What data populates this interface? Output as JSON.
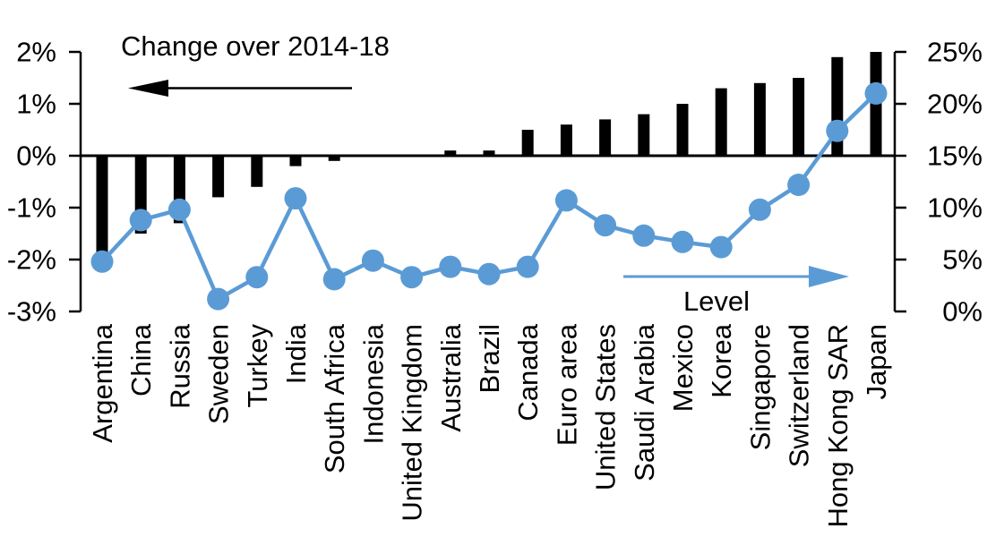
{
  "chart_data": {
    "type": "combo-bar-line",
    "title": "",
    "categories": [
      "Argentina",
      "China",
      "Russia",
      "Sweden",
      "Turkey",
      "India",
      "South Africa",
      "Indonesia",
      "United Kingdom",
      "Australia",
      "Brazil",
      "Canada",
      "Euro area",
      "United States",
      "Saudi Arabia",
      "Mexico",
      "Korea",
      "Singapore",
      "Switzerland",
      "Hong Kong SAR",
      "Japan"
    ],
    "series": [
      {
        "name": "Change over 2014-18",
        "type": "bar",
        "axis": "left",
        "color": "#000000",
        "values": [
          -1.9,
          -1.5,
          -1.3,
          -0.8,
          -0.6,
          -0.2,
          -0.1,
          0.0,
          0.0,
          0.1,
          0.1,
          0.5,
          0.6,
          0.7,
          0.8,
          1.0,
          1.3,
          1.4,
          1.5,
          1.9,
          2.0
        ]
      },
      {
        "name": "Level",
        "type": "line",
        "axis": "right",
        "color": "#5B9BD5",
        "values": [
          4.8,
          8.8,
          9.8,
          1.2,
          3.3,
          10.9,
          3.1,
          4.9,
          3.3,
          4.3,
          3.6,
          4.3,
          10.7,
          8.3,
          7.3,
          6.7,
          6.2,
          9.8,
          12.2,
          17.4,
          21.0
        ]
      }
    ],
    "left_axis": {
      "min": -3,
      "max": 2,
      "tick_step": 1,
      "tick_labels": [
        "2%",
        "1%",
        "0%",
        "-1%",
        "-2%",
        "-3%"
      ],
      "unit": "%"
    },
    "right_axis": {
      "min": 0,
      "max": 25,
      "tick_step": 5,
      "tick_labels": [
        "25%",
        "20%",
        "15%",
        "10%",
        "5%",
        "0%"
      ],
      "unit": "%"
    },
    "annotations": [
      {
        "text": "Change over 2014-18",
        "arrow_direction": "left",
        "refers_to": "bar series / left axis"
      },
      {
        "text": "Level",
        "arrow_direction": "right",
        "refers_to": "line series / right axis"
      }
    ],
    "grid": false,
    "legend_position": "none"
  },
  "colors": {
    "bar": "#000000",
    "line": "#5B9BD5",
    "text": "#000000",
    "background": "#FFFFFF"
  }
}
